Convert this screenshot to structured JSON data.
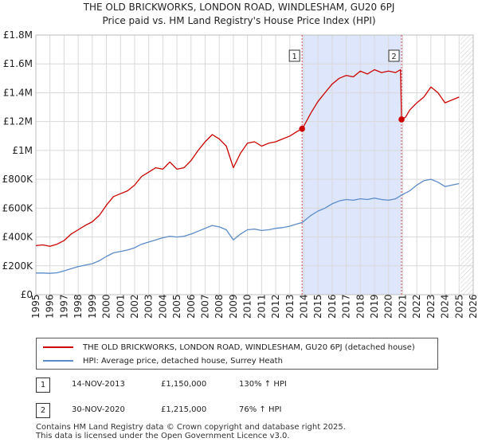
{
  "title": {
    "line1": "THE OLD BRICKWORKS, LONDON ROAD, WINDLESHAM, GU20 6PJ",
    "line2": "Price paid vs. HM Land Registry's House Price Index (HPI)"
  },
  "chart_data": {
    "type": "line",
    "title": "THE OLD BRICKWORKS, LONDON ROAD, WINDLESHAM, GU20 6PJ — Price paid vs. HM Land Registry's House Price Index (HPI)",
    "xlabel": "",
    "ylabel": "",
    "xlim": [
      1995,
      2026
    ],
    "ylim": [
      0,
      1800000
    ],
    "y_ticks": [
      {
        "value": 0,
        "label": "£0"
      },
      {
        "value": 200000,
        "label": "£200K"
      },
      {
        "value": 400000,
        "label": "£400K"
      },
      {
        "value": 600000,
        "label": "£600K"
      },
      {
        "value": 800000,
        "label": "£800K"
      },
      {
        "value": 1000000,
        "label": "£1M"
      },
      {
        "value": 1200000,
        "label": "£1.2M"
      },
      {
        "value": 1400000,
        "label": "£1.4M"
      },
      {
        "value": 1600000,
        "label": "£1.6M"
      },
      {
        "value": 1800000,
        "label": "£1.8M"
      }
    ],
    "x_ticks": [
      {
        "value": 1995,
        "label": "1995"
      },
      {
        "value": 1996,
        "label": "1996"
      },
      {
        "value": 1997,
        "label": "1997"
      },
      {
        "value": 1998,
        "label": "1998"
      },
      {
        "value": 1999,
        "label": "1999"
      },
      {
        "value": 2000,
        "label": "2000"
      },
      {
        "value": 2001,
        "label": "2001"
      },
      {
        "value": 2002,
        "label": "2002"
      },
      {
        "value": 2003,
        "label": "2003"
      },
      {
        "value": 2004,
        "label": "2004"
      },
      {
        "value": 2005,
        "label": "2005"
      },
      {
        "value": 2006,
        "label": "2006"
      },
      {
        "value": 2007,
        "label": "2007"
      },
      {
        "value": 2008,
        "label": "2008"
      },
      {
        "value": 2009,
        "label": "2009"
      },
      {
        "value": 2010,
        "label": "2010"
      },
      {
        "value": 2011,
        "label": "2011"
      },
      {
        "value": 2012,
        "label": "2012"
      },
      {
        "value": 2013,
        "label": "2013"
      },
      {
        "value": 2014,
        "label": "2014"
      },
      {
        "value": 2015,
        "label": "2015"
      },
      {
        "value": 2016,
        "label": "2016"
      },
      {
        "value": 2017,
        "label": "2017"
      },
      {
        "value": 2018,
        "label": "2018"
      },
      {
        "value": 2019,
        "label": "2019"
      },
      {
        "value": 2020,
        "label": "2020"
      },
      {
        "value": 2021,
        "label": "2021"
      },
      {
        "value": 2022,
        "label": "2022"
      },
      {
        "value": 2023,
        "label": "2023"
      },
      {
        "value": 2024,
        "label": "2024"
      },
      {
        "value": 2025,
        "label": "2025"
      },
      {
        "value": 2026,
        "label": "2026"
      }
    ],
    "grid": true,
    "shaded_period": {
      "from": 2013.87,
      "to": 2020.92,
      "color": "#dde6fb"
    },
    "forecast_hatch_from": 2025.1,
    "colors": {
      "property": "#cc0000",
      "hpi": "#5b8bc9",
      "sale_line": "#dd4444"
    },
    "series": [
      {
        "name": "THE OLD BRICKWORKS, LONDON ROAD, WINDLESHAM, GU20 6PJ (detached house)",
        "color": "#cc0000",
        "points": [
          [
            1995.0,
            340000
          ],
          [
            1995.5,
            345000
          ],
          [
            1996.0,
            335000
          ],
          [
            1996.5,
            350000
          ],
          [
            1997.0,
            375000
          ],
          [
            1997.5,
            420000
          ],
          [
            1998.0,
            450000
          ],
          [
            1998.5,
            480000
          ],
          [
            1999.0,
            505000
          ],
          [
            1999.5,
            550000
          ],
          [
            2000.0,
            620000
          ],
          [
            2000.5,
            680000
          ],
          [
            2001.0,
            700000
          ],
          [
            2001.5,
            720000
          ],
          [
            2002.0,
            760000
          ],
          [
            2002.5,
            820000
          ],
          [
            2003.0,
            850000
          ],
          [
            2003.5,
            880000
          ],
          [
            2004.0,
            870000
          ],
          [
            2004.5,
            920000
          ],
          [
            2005.0,
            870000
          ],
          [
            2005.5,
            880000
          ],
          [
            2006.0,
            930000
          ],
          [
            2006.5,
            1000000
          ],
          [
            2007.0,
            1060000
          ],
          [
            2007.5,
            1110000
          ],
          [
            2008.0,
            1080000
          ],
          [
            2008.5,
            1030000
          ],
          [
            2009.0,
            880000
          ],
          [
            2009.5,
            980000
          ],
          [
            2010.0,
            1050000
          ],
          [
            2010.5,
            1060000
          ],
          [
            2011.0,
            1030000
          ],
          [
            2011.5,
            1050000
          ],
          [
            2012.0,
            1060000
          ],
          [
            2012.5,
            1080000
          ],
          [
            2013.0,
            1100000
          ],
          [
            2013.5,
            1130000
          ],
          [
            2013.87,
            1150000
          ],
          [
            2014.0,
            1170000
          ],
          [
            2014.5,
            1260000
          ],
          [
            2015.0,
            1340000
          ],
          [
            2015.5,
            1400000
          ],
          [
            2016.0,
            1460000
          ],
          [
            2016.5,
            1500000
          ],
          [
            2017.0,
            1520000
          ],
          [
            2017.5,
            1510000
          ],
          [
            2018.0,
            1550000
          ],
          [
            2018.5,
            1530000
          ],
          [
            2019.0,
            1560000
          ],
          [
            2019.5,
            1540000
          ],
          [
            2020.0,
            1550000
          ],
          [
            2020.5,
            1540000
          ],
          [
            2020.85,
            1560000
          ],
          [
            2020.92,
            1215000
          ],
          [
            2021.2,
            1230000
          ],
          [
            2021.5,
            1280000
          ],
          [
            2022.0,
            1330000
          ],
          [
            2022.5,
            1370000
          ],
          [
            2023.0,
            1440000
          ],
          [
            2023.5,
            1400000
          ],
          [
            2024.0,
            1330000
          ],
          [
            2024.5,
            1350000
          ],
          [
            2025.0,
            1370000
          ]
        ]
      },
      {
        "name": "HPI: Average price, detached house, Surrey Heath",
        "color": "#5b8bc9",
        "points": [
          [
            1995.0,
            150000
          ],
          [
            1995.5,
            150000
          ],
          [
            1996.0,
            148000
          ],
          [
            1996.5,
            152000
          ],
          [
            1997.0,
            165000
          ],
          [
            1997.5,
            180000
          ],
          [
            1998.0,
            195000
          ],
          [
            1998.5,
            205000
          ],
          [
            1999.0,
            215000
          ],
          [
            1999.5,
            235000
          ],
          [
            2000.0,
            265000
          ],
          [
            2000.5,
            290000
          ],
          [
            2001.0,
            300000
          ],
          [
            2001.5,
            310000
          ],
          [
            2002.0,
            325000
          ],
          [
            2002.5,
            350000
          ],
          [
            2003.0,
            365000
          ],
          [
            2003.5,
            380000
          ],
          [
            2004.0,
            395000
          ],
          [
            2004.5,
            405000
          ],
          [
            2005.0,
            400000
          ],
          [
            2005.5,
            405000
          ],
          [
            2006.0,
            420000
          ],
          [
            2006.5,
            440000
          ],
          [
            2007.0,
            460000
          ],
          [
            2007.5,
            480000
          ],
          [
            2008.0,
            470000
          ],
          [
            2008.5,
            450000
          ],
          [
            2009.0,
            380000
          ],
          [
            2009.5,
            420000
          ],
          [
            2010.0,
            450000
          ],
          [
            2010.5,
            455000
          ],
          [
            2011.0,
            445000
          ],
          [
            2011.5,
            450000
          ],
          [
            2012.0,
            460000
          ],
          [
            2012.5,
            465000
          ],
          [
            2013.0,
            475000
          ],
          [
            2013.5,
            490000
          ],
          [
            2013.87,
            500000
          ],
          [
            2014.0,
            510000
          ],
          [
            2014.5,
            550000
          ],
          [
            2015.0,
            580000
          ],
          [
            2015.5,
            600000
          ],
          [
            2016.0,
            630000
          ],
          [
            2016.5,
            650000
          ],
          [
            2017.0,
            660000
          ],
          [
            2017.5,
            655000
          ],
          [
            2018.0,
            665000
          ],
          [
            2018.5,
            660000
          ],
          [
            2019.0,
            670000
          ],
          [
            2019.5,
            660000
          ],
          [
            2020.0,
            655000
          ],
          [
            2020.5,
            665000
          ],
          [
            2020.92,
            690000
          ],
          [
            2021.5,
            720000
          ],
          [
            2022.0,
            760000
          ],
          [
            2022.5,
            790000
          ],
          [
            2023.0,
            800000
          ],
          [
            2023.5,
            780000
          ],
          [
            2024.0,
            750000
          ],
          [
            2024.5,
            760000
          ],
          [
            2025.0,
            770000
          ]
        ]
      }
    ],
    "sales": [
      {
        "id": "1",
        "x": 2013.87,
        "price": 1150000,
        "date": "14-NOV-2013",
        "price_label": "£1,150,000",
        "hpi_label": "130% ↑ HPI"
      },
      {
        "id": "2",
        "x": 2020.92,
        "price": 1215000,
        "date": "30-NOV-2020",
        "price_label": "£1,215,000",
        "hpi_label": "76% ↑ HPI"
      }
    ]
  },
  "legend": {
    "property_label": "THE OLD BRICKWORKS, LONDON ROAD, WINDLESHAM, GU20 6PJ (detached house)",
    "hpi_label": "HPI: Average price, detached house, Surrey Heath"
  },
  "footer": {
    "line1": "Contains HM Land Registry data © Crown copyright and database right 2025.",
    "line2": "This data is licensed under the Open Government Licence v3.0."
  }
}
